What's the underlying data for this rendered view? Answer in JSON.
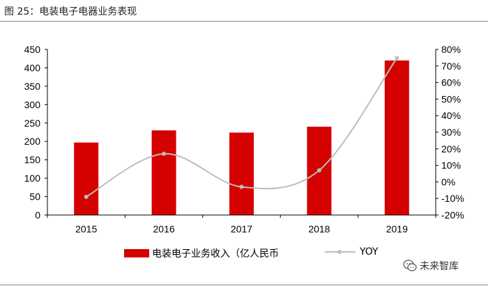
{
  "caption": "图 25：电装电子电器业务表现",
  "watermark": {
    "text": "未来智库",
    "icon": "wechat-icon"
  },
  "colors": {
    "bar": "#d50000",
    "line": "#bdbdbd",
    "axis": "#000000"
  },
  "chart_data": {
    "type": "bar",
    "categories": [
      "2015",
      "2016",
      "2017",
      "2018",
      "2019"
    ],
    "series": [
      {
        "name": "电装电子业务收入（亿人民币",
        "type": "bar",
        "axis": "left",
        "values": [
          197,
          230,
          224,
          240,
          420
        ]
      },
      {
        "name": "YOY",
        "type": "line",
        "axis": "right",
        "values": [
          -9,
          17,
          -3,
          7,
          74.8
        ]
      }
    ],
    "y_left": {
      "ylim": [
        0,
        450
      ],
      "ticks": [
        "0",
        "50",
        "100",
        "150",
        "200",
        "250",
        "300",
        "350",
        "400",
        "450"
      ]
    },
    "y_right": {
      "ylim": [
        -20,
        80
      ],
      "ticks": [
        "-20%",
        "-10%",
        "0%",
        "10%",
        "20%",
        "30%",
        "40%",
        "50%",
        "60%",
        "70%",
        "80%"
      ]
    },
    "title": "",
    "xlabel": "",
    "ylabel": "",
    "grid": false,
    "legend": "bottom"
  }
}
